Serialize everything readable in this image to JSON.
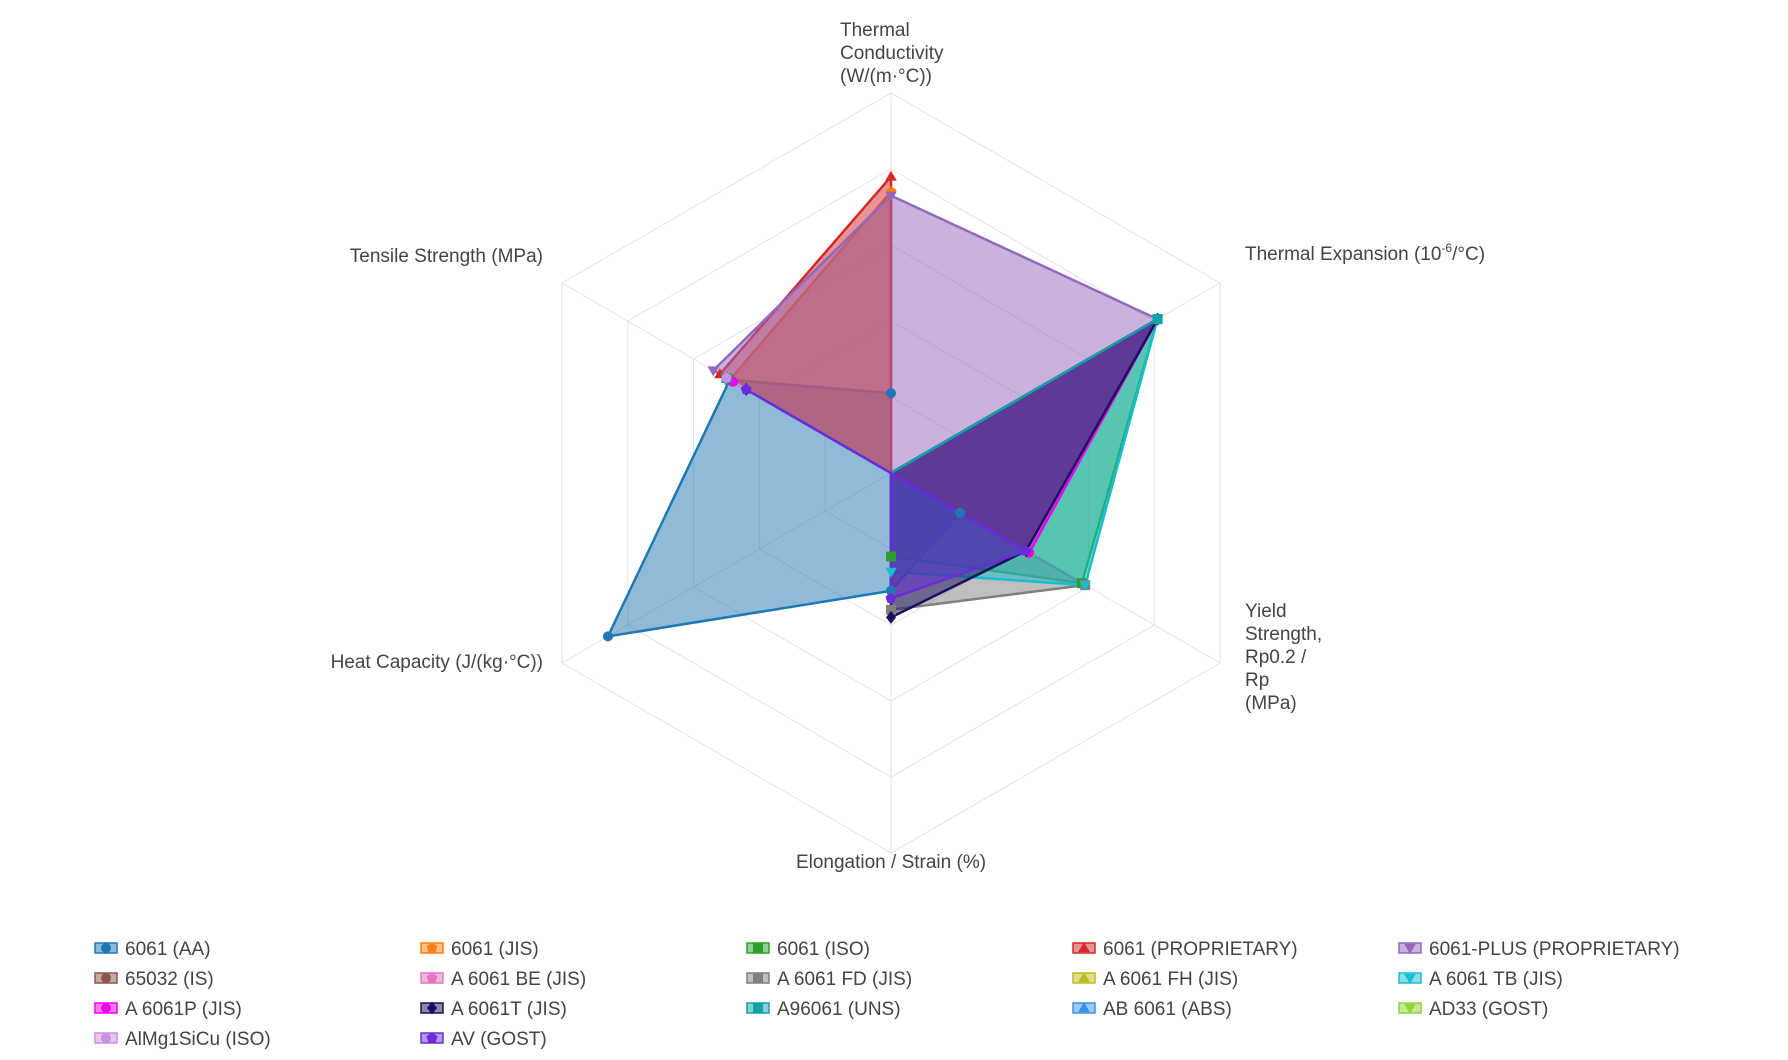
{
  "chart_data": {
    "type": "radar",
    "axes": [
      {
        "label_lines": [
          "Thermal",
          "Conductivity",
          "(W/(m·°C))"
        ]
      },
      {
        "label_main": "Thermal Expansion (10",
        "label_sup": "-6",
        "label_tail": "/°C)"
      },
      {
        "label_lines": [
          "Yield",
          "Strength,",
          "Rp0.2 /",
          "Rp",
          "(MPa)"
        ]
      },
      {
        "label_lines": [
          "Elongation / Strain (%)"
        ]
      },
      {
        "label_lines": [
          "Heat Capacity (J/(kg·°C))"
        ]
      },
      {
        "label_lines": [
          "Tensile Strength (MPa)"
        ]
      }
    ],
    "scale": {
      "min": 0,
      "max": 1,
      "grid_levels": 5
    },
    "series": [
      {
        "name": "6061 (AA)",
        "color": "#1f77b4",
        "marker": "circle",
        "values": [
          0.21,
          0.0,
          0.21,
          0.31,
          0.86,
          0.49
        ]
      },
      {
        "name": "6061 (JIS)",
        "color": "#ff7f0e",
        "marker": "pentagon",
        "values": [
          0.74,
          0.0,
          0.0,
          0.0,
          0.0,
          0.49
        ]
      },
      {
        "name": "6061 (ISO)",
        "color": "#2ca02c",
        "marker": "square",
        "values": [
          0.0,
          0.81,
          0.58,
          0.22,
          0.0,
          0.49
        ]
      },
      {
        "name": "6061 (PROPRIETARY)",
        "color": "#d62728",
        "marker": "triangle-up",
        "values": [
          0.78,
          0.0,
          0.0,
          0.0,
          0.0,
          0.52
        ]
      },
      {
        "name": "6061-PLUS (PROPRIETARY)",
        "color": "#9467bd",
        "marker": "triangle-down",
        "values": [
          0.73,
          0.81,
          0.0,
          0.0,
          0.0,
          0.54
        ]
      },
      {
        "name": "65032 (IS)",
        "color": "#8c564b",
        "marker": "circle",
        "values": [
          0.0,
          0.0,
          0.0,
          0.33,
          0.0,
          0.0
        ]
      },
      {
        "name": "A 6061 BE (JIS)",
        "color": "#e377c2",
        "marker": "pentagon",
        "values": [
          0.0,
          0.0,
          0.0,
          0.33,
          0.0,
          0.0
        ]
      },
      {
        "name": "A 6061 FD (JIS)",
        "color": "#7f7f7f",
        "marker": "square",
        "values": [
          0.0,
          0.0,
          0.59,
          0.36,
          0.0,
          0.0
        ]
      },
      {
        "name": "A 6061 FH (JIS)",
        "color": "#bcbd22",
        "marker": "triangle-up",
        "values": [
          0.0,
          0.0,
          0.42,
          0.0,
          0.0,
          0.0
        ]
      },
      {
        "name": "A 6061 TB (JIS)",
        "color": "#17becf",
        "marker": "triangle-down",
        "values": [
          0.0,
          0.81,
          0.59,
          0.26,
          0.0,
          0.5
        ]
      },
      {
        "name": "A 6061P (JIS)",
        "color": "#ee00ee",
        "marker": "circle",
        "values": [
          0.0,
          0.81,
          0.42,
          0.0,
          0.0,
          0.48
        ]
      },
      {
        "name": "A 6061T (JIS)",
        "color": "#1a1060",
        "marker": "diamond",
        "values": [
          0.0,
          0.81,
          0.41,
          0.38,
          0.0,
          0.44
        ]
      },
      {
        "name": "A96061 (UNS)",
        "color": "#12a2a8",
        "marker": "square",
        "values": [
          0.0,
          0.81,
          0.0,
          0.0,
          0.0,
          0.5
        ]
      },
      {
        "name": "AB 6061 (ABS)",
        "color": "#3d8fe8",
        "marker": "triangle-up",
        "values": [
          0.0,
          0.0,
          0.0,
          0.0,
          0.0,
          0.0
        ]
      },
      {
        "name": "AD33 (GOST)",
        "color": "#8fd634",
        "marker": "triangle-down",
        "values": [
          0.0,
          0.0,
          0.0,
          0.0,
          0.0,
          0.0
        ]
      },
      {
        "name": "AlMg1SiCu (ISO)",
        "color": "#cc8fe0",
        "marker": "circle",
        "values": [
          0.0,
          0.0,
          0.0,
          0.0,
          0.0,
          0.5
        ]
      },
      {
        "name": "AV (GOST)",
        "color": "#6a2bd9",
        "marker": "pentagon",
        "values": [
          0.0,
          0.0,
          0.41,
          0.33,
          0.0,
          0.44
        ]
      }
    ]
  }
}
